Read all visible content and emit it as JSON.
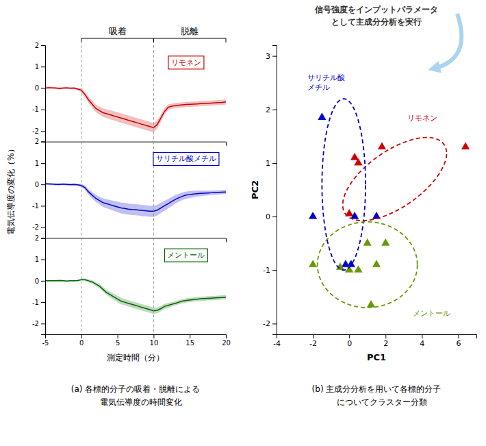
{
  "chart_data": [
    {
      "type": "line",
      "title": [
        "(a) 各標的分子の吸着・脱離による",
        "    電気伝導度の時間変化"
      ],
      "xlabel": "測定時間（分）",
      "ylabel": "電気伝導度の変化（%）",
      "xlim": [
        -5,
        20
      ],
      "xticks": [
        -5,
        0,
        5,
        10,
        15,
        20
      ],
      "ylim": [
        -2.5,
        2.0
      ],
      "yticks": [
        -2,
        -1,
        0,
        1,
        2
      ],
      "vlines": [
        0,
        10
      ],
      "annotations": [
        {
          "text": "吸着",
          "x": [
            0,
            10
          ]
        },
        {
          "text": "脱離",
          "x": [
            10,
            20
          ]
        }
      ],
      "x": [
        -5,
        -4.5,
        -4,
        -3.5,
        -3,
        -2.5,
        -2,
        -1.5,
        -1,
        -0.5,
        0,
        0.5,
        1,
        1.5,
        2,
        2.5,
        3,
        3.5,
        4,
        4.5,
        5,
        5.5,
        6,
        6.5,
        7,
        7.5,
        8,
        8.5,
        9,
        9.5,
        10,
        10.5,
        11,
        11.5,
        12,
        12.5,
        13,
        13.5,
        14,
        14.5,
        15,
        15.5,
        16,
        16.5,
        17,
        17.5,
        18,
        18.5,
        19,
        19.5,
        20
      ],
      "series": [
        {
          "name": "リモネン",
          "color": "#cc0000",
          "values": [
            0.0,
            0.02,
            0.01,
            0.0,
            -0.02,
            0.0,
            0.01,
            -0.01,
            0.0,
            -0.05,
            -0.1,
            -0.3,
            -0.55,
            -0.75,
            -0.95,
            -1.05,
            -1.15,
            -1.2,
            -1.25,
            -1.3,
            -1.35,
            -1.4,
            -1.45,
            -1.5,
            -1.55,
            -1.6,
            -1.65,
            -1.7,
            -1.75,
            -1.8,
            -1.85,
            -1.7,
            -1.4,
            -1.1,
            -0.9,
            -0.85,
            -0.82,
            -0.8,
            -0.78,
            -0.77,
            -0.76,
            -0.75,
            -0.74,
            -0.73,
            -0.72,
            -0.71,
            -0.7,
            -0.69,
            -0.68,
            -0.67,
            -0.65
          ],
          "std": [
            0.05,
            0.05,
            0.05,
            0.05,
            0.05,
            0.05,
            0.05,
            0.05,
            0.05,
            0.05,
            0.1,
            0.12,
            0.15,
            0.17,
            0.18,
            0.19,
            0.2,
            0.2,
            0.21,
            0.21,
            0.22,
            0.22,
            0.22,
            0.22,
            0.22,
            0.22,
            0.22,
            0.22,
            0.22,
            0.22,
            0.22,
            0.2,
            0.18,
            0.15,
            0.13,
            0.12,
            0.12,
            0.12,
            0.12,
            0.12,
            0.12,
            0.12,
            0.12,
            0.12,
            0.12,
            0.12,
            0.12,
            0.12,
            0.12,
            0.12,
            0.12
          ]
        },
        {
          "name": "サリチル酸メチル",
          "color": "#0000cc",
          "values": [
            0.03,
            0.02,
            0.01,
            0.0,
            0.0,
            0.01,
            0.0,
            -0.01,
            0.0,
            -0.02,
            -0.05,
            -0.15,
            -0.35,
            -0.5,
            -0.65,
            -0.75,
            -0.85,
            -0.9,
            -0.95,
            -1.0,
            -1.05,
            -1.1,
            -1.12,
            -1.15,
            -1.17,
            -1.18,
            -1.2,
            -1.22,
            -1.23,
            -1.25,
            -1.25,
            -1.2,
            -1.1,
            -1.0,
            -0.9,
            -0.8,
            -0.7,
            -0.62,
            -0.55,
            -0.5,
            -0.47,
            -0.45,
            -0.43,
            -0.42,
            -0.41,
            -0.4,
            -0.39,
            -0.38,
            -0.37,
            -0.36,
            -0.35
          ],
          "std": [
            0.05,
            0.05,
            0.05,
            0.05,
            0.05,
            0.05,
            0.05,
            0.05,
            0.05,
            0.05,
            0.08,
            0.1,
            0.13,
            0.15,
            0.17,
            0.18,
            0.2,
            0.21,
            0.22,
            0.23,
            0.25,
            0.25,
            0.26,
            0.26,
            0.26,
            0.26,
            0.26,
            0.26,
            0.26,
            0.26,
            0.26,
            0.25,
            0.24,
            0.23,
            0.22,
            0.21,
            0.2,
            0.19,
            0.18,
            0.17,
            0.16,
            0.15,
            0.14,
            0.13,
            0.12,
            0.11,
            0.1,
            0.1,
            0.1,
            0.1,
            0.1
          ]
        },
        {
          "name": "メントール",
          "color": "#006600",
          "values": [
            0.0,
            0.0,
            0.0,
            0.0,
            0.01,
            0.0,
            -0.01,
            0.0,
            0.0,
            0.01,
            0.05,
            0.05,
            0.0,
            -0.05,
            -0.15,
            -0.25,
            -0.4,
            -0.55,
            -0.65,
            -0.75,
            -0.85,
            -0.95,
            -1.0,
            -1.05,
            -1.1,
            -1.15,
            -1.2,
            -1.25,
            -1.3,
            -1.35,
            -1.4,
            -1.38,
            -1.3,
            -1.2,
            -1.15,
            -1.1,
            -1.05,
            -1.0,
            -0.95,
            -0.92,
            -0.9,
            -0.88,
            -0.86,
            -0.84,
            -0.83,
            -0.82,
            -0.81,
            -0.8,
            -0.79,
            -0.78,
            -0.77
          ],
          "std": [
            0.04,
            0.04,
            0.04,
            0.04,
            0.04,
            0.04,
            0.04,
            0.04,
            0.04,
            0.04,
            0.05,
            0.06,
            0.07,
            0.08,
            0.09,
            0.1,
            0.11,
            0.12,
            0.13,
            0.14,
            0.15,
            0.15,
            0.15,
            0.15,
            0.15,
            0.15,
            0.15,
            0.15,
            0.15,
            0.15,
            0.15,
            0.14,
            0.13,
            0.12,
            0.11,
            0.1,
            0.1,
            0.1,
            0.1,
            0.1,
            0.1,
            0.1,
            0.1,
            0.1,
            0.1,
            0.1,
            0.1,
            0.1,
            0.1,
            0.1,
            0.1
          ]
        }
      ]
    },
    {
      "type": "scatter",
      "title": [
        "(b) 主成分分析を用いて各標的分子",
        "    についてクラスター分類"
      ],
      "subtitle": [
        "信号強度をインプットパラメータ",
        "として主成分分析を実行"
      ],
      "xlabel": "PC1",
      "ylabel": "PC2",
      "xlim": [
        -4,
        7
      ],
      "xticks": [
        -4,
        -2,
        0,
        2,
        4,
        6
      ],
      "ylim": [
        -2.2,
        3.2
      ],
      "yticks": [
        -2,
        -1,
        0,
        1,
        2,
        3
      ],
      "series": [
        {
          "color": "#cc0000",
          "marker": "triangle",
          "x": [
            0.3,
            0.5,
            0.0,
            1.8,
            6.4
          ],
          "values": [
            1.1,
            1.0,
            0.05,
            1.3,
            1.3
          ],
          "ellipse": {
            "center": [
              2.5,
              0.7
            ],
            "width": 5.8,
            "height": 1.2,
            "angle": 10
          }
        },
        {
          "color": "#0000cc",
          "marker": "triangle",
          "x": [
            -2.0,
            -1.5,
            -0.2,
            0.1,
            0.3,
            1.5
          ],
          "values": [
            0.0,
            1.85,
            -0.9,
            -0.9,
            0.0,
            0.0
          ],
          "ellipse": {
            "center": [
              -0.3,
              0.6
            ],
            "width": 2.4,
            "height": 3.2,
            "angle": 0
          }
        },
        {
          "color": "#669900",
          "marker": "triangle",
          "x": [
            -2.0,
            -0.5,
            0.0,
            0.5,
            1.5,
            1.0,
            2.0,
            1.2
          ],
          "values": [
            -0.9,
            -0.95,
            -1.0,
            -1.0,
            -0.9,
            -0.5,
            -0.5,
            -1.65
          ],
          "ellipse": {
            "center": [
              1.0,
              -0.9
            ],
            "width": 5.5,
            "height": 1.6,
            "angle": 0
          }
        }
      ],
      "annotations": [
        {
          "text": [
            "サリチル酸",
            "メチル"
          ],
          "x": -2.3,
          "y": 2.65,
          "color": "#0000cc"
        },
        {
          "text": [
            "リモネン"
          ],
          "x": 3.2,
          "y": 1.9,
          "color": "#cc0000"
        },
        {
          "text": [
            "メントール"
          ],
          "x": 3.5,
          "y": -1.75,
          "color": "#669900"
        }
      ]
    }
  ]
}
